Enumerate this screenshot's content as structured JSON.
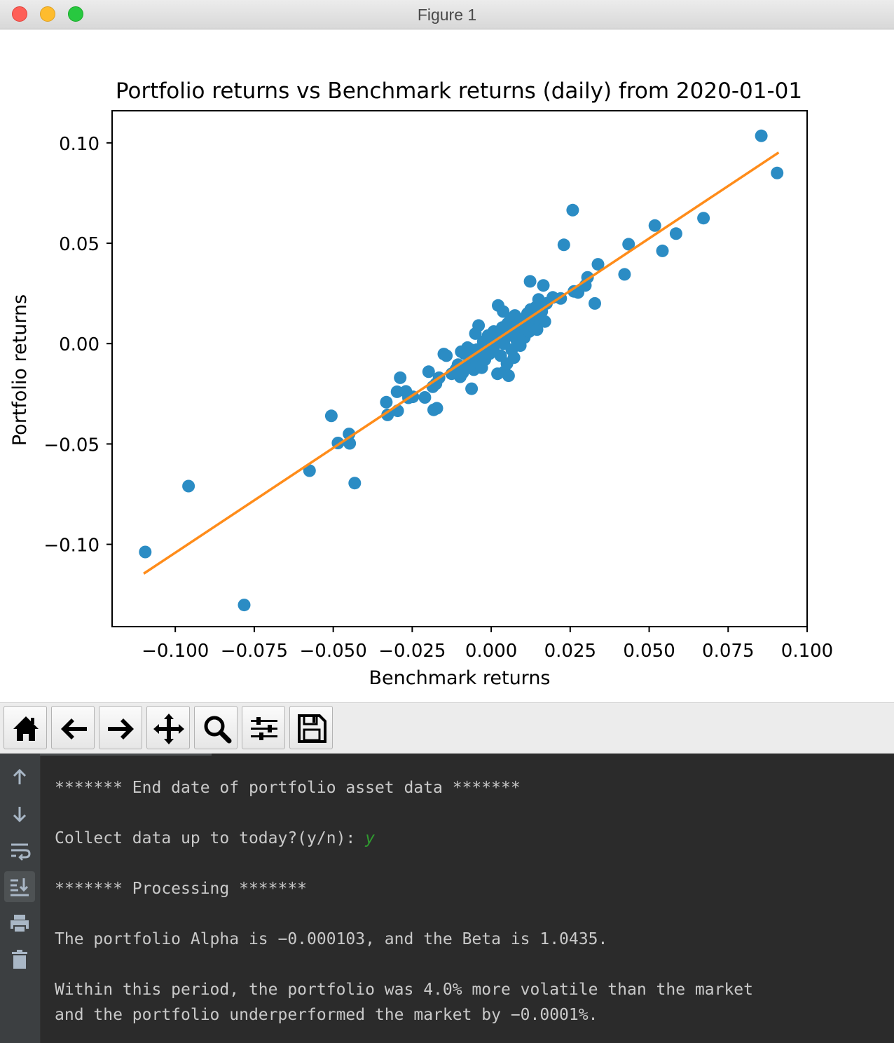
{
  "window": {
    "title": "Figure 1"
  },
  "chart_data": {
    "type": "scatter",
    "title": "Portfolio returns vs Benchmark returns (daily) from 2020-01-01",
    "xlabel": "Benchmark returns",
    "ylabel": "Portfolio returns",
    "xlim": [
      -0.12,
      0.1
    ],
    "ylim": [
      -0.141,
      0.116
    ],
    "xticks": [
      -0.1,
      -0.075,
      -0.05,
      -0.025,
      0.0,
      0.025,
      0.05,
      0.075,
      0.1
    ],
    "xtick_labels": [
      "−0.100",
      "−0.075",
      "−0.050",
      "−0.025",
      "0.000",
      "0.025",
      "0.050",
      "0.075",
      "0.100"
    ],
    "yticks": [
      0.1,
      0.05,
      0.0,
      -0.05,
      -0.1
    ],
    "ytick_labels": [
      "0.10",
      "0.05",
      "0.00",
      "−0.05",
      "−0.10"
    ],
    "grid": false,
    "colors": {
      "points": "#2b8cc4",
      "fit_line": "#ff8c1a"
    },
    "series": [
      {
        "kind": "scatter",
        "points": [
          [
            -0.1095,
            -0.1038
          ],
          [
            -0.0958,
            -0.071
          ],
          [
            -0.0782,
            -0.1302
          ],
          [
            -0.0575,
            -0.0633
          ],
          [
            -0.0506,
            -0.036
          ],
          [
            -0.0485,
            -0.0495
          ],
          [
            -0.045,
            -0.045
          ],
          [
            -0.0448,
            -0.0497
          ],
          [
            -0.0432,
            -0.0695
          ],
          [
            -0.0332,
            -0.0292
          ],
          [
            -0.0328,
            -0.0355
          ],
          [
            -0.0298,
            -0.024
          ],
          [
            -0.0296,
            -0.0335
          ],
          [
            -0.0288,
            -0.017
          ],
          [
            -0.027,
            -0.0238
          ],
          [
            -0.0262,
            -0.027
          ],
          [
            -0.0248,
            -0.0265
          ],
          [
            -0.021,
            -0.0268
          ],
          [
            -0.0198,
            -0.014
          ],
          [
            -0.0185,
            -0.0215
          ],
          [
            -0.0182,
            -0.033
          ],
          [
            -0.0175,
            -0.02
          ],
          [
            -0.0172,
            -0.0322
          ],
          [
            -0.0165,
            -0.017
          ],
          [
            -0.015,
            -0.0052
          ],
          [
            -0.0142,
            -0.006
          ],
          [
            -0.0125,
            -0.015
          ],
          [
            -0.0112,
            -0.013
          ],
          [
            -0.0105,
            -0.0105
          ],
          [
            -0.0098,
            -0.0165
          ],
          [
            -0.0095,
            -0.004
          ],
          [
            -0.009,
            -0.0145
          ],
          [
            -0.0085,
            -0.005
          ],
          [
            -0.0078,
            -0.012
          ],
          [
            -0.0075,
            -0.002
          ],
          [
            -0.007,
            -0.01
          ],
          [
            -0.0065,
            -0.003
          ],
          [
            -0.0062,
            -0.0225
          ],
          [
            -0.0058,
            -0.007
          ],
          [
            -0.0055,
            -0.013
          ],
          [
            -0.005,
            0.005
          ],
          [
            -0.0047,
            -0.009
          ],
          [
            -0.0045,
            -0.003
          ],
          [
            -0.004,
            0.009
          ],
          [
            -0.0035,
            -0.006
          ],
          [
            -0.003,
            -0.012
          ],
          [
            -0.0025,
            0.001
          ],
          [
            -0.002,
            -0.008
          ],
          [
            -0.0015,
            -0.003
          ],
          [
            -0.001,
            0.004
          ],
          [
            -0.0005,
            -0.005
          ],
          [
            0.0,
            0.002
          ],
          [
            0.0005,
            -0.002
          ],
          [
            0.0008,
            0.006
          ],
          [
            0.001,
            -0.001
          ],
          [
            0.0015,
            0.005
          ],
          [
            0.002,
            -0.015
          ],
          [
            0.0022,
            0.019
          ],
          [
            0.0025,
            0.003
          ],
          [
            0.003,
            -0.006
          ],
          [
            0.0035,
            0.008
          ],
          [
            0.0038,
            0.016
          ],
          [
            0.004,
            0.0
          ],
          [
            0.0042,
            -0.014
          ],
          [
            0.0045,
            0.003
          ],
          [
            0.005,
            -0.01
          ],
          [
            0.0052,
            0.01
          ],
          [
            0.0055,
            -0.016
          ],
          [
            0.006,
            0.005
          ],
          [
            0.0062,
            0.012
          ],
          [
            0.0065,
            -0.003
          ],
          [
            0.007,
            0.008
          ],
          [
            0.0072,
            -0.007
          ],
          [
            0.0075,
            0.014
          ],
          [
            0.008,
            0.002
          ],
          [
            0.0085,
            0.01
          ],
          [
            0.009,
            0.006
          ],
          [
            0.0092,
            -0.001
          ],
          [
            0.0095,
            0.012
          ],
          [
            0.01,
            0.008
          ],
          [
            0.0105,
            0.003
          ],
          [
            0.011,
            0.011
          ],
          [
            0.0115,
            0.015
          ],
          [
            0.012,
            0.006
          ],
          [
            0.0123,
            0.031
          ],
          [
            0.0125,
            0.017
          ],
          [
            0.013,
            0.009
          ],
          [
            0.0135,
            0.013
          ],
          [
            0.014,
            0.018
          ],
          [
            0.0145,
            0.007
          ],
          [
            0.015,
            0.022
          ],
          [
            0.0155,
            0.012
          ],
          [
            0.016,
            0.016
          ],
          [
            0.0165,
            0.029
          ],
          [
            0.017,
            0.011
          ],
          [
            0.0175,
            0.02
          ],
          [
            0.0195,
            0.023
          ],
          [
            0.022,
            0.0225
          ],
          [
            0.023,
            0.0492
          ],
          [
            0.0258,
            0.0665
          ],
          [
            0.0262,
            0.026
          ],
          [
            0.0275,
            0.0255
          ],
          [
            0.0298,
            0.029
          ],
          [
            0.0305,
            0.033
          ],
          [
            0.0328,
            0.02
          ],
          [
            0.0338,
            0.0395
          ],
          [
            0.0422,
            0.0345
          ],
          [
            0.0435,
            0.0495
          ],
          [
            0.0518,
            0.0588
          ],
          [
            0.0542,
            0.0462
          ],
          [
            0.0585,
            0.0548
          ],
          [
            0.0672,
            0.0625
          ],
          [
            0.0855,
            0.1035
          ],
          [
            0.0905,
            0.085
          ]
        ]
      },
      {
        "kind": "line",
        "from": [
          -0.11,
          -0.1146
        ],
        "to": [
          0.091,
          0.0952
        ]
      }
    ]
  },
  "toolbar": {
    "buttons": [
      {
        "icon": "home-icon"
      },
      {
        "icon": "back-arrow-icon"
      },
      {
        "icon": "forward-arrow-icon"
      },
      {
        "icon": "pan-icon"
      },
      {
        "icon": "zoom-icon"
      },
      {
        "icon": "configure-subplots-icon"
      },
      {
        "icon": "save-icon"
      }
    ]
  },
  "console": {
    "gutter_icons": [
      "scroll-up-icon",
      "scroll-down-icon",
      "soft-wrap-icon",
      "scroll-to-end-icon",
      "print-icon",
      "clear-icon"
    ],
    "lines": {
      "end_date": "******* End date of portfolio asset data *******",
      "collect_prompt": "Collect data up to today?(y/n): ",
      "collect_answer": "y",
      "processing": "******* Processing *******",
      "alpha_beta": "The portfolio Alpha is −0.000103, and the Beta is 1.0435.",
      "volatility": "Within this period, the portfolio was 4.0% more volatile than the market",
      "underperform": "and the portfolio underperformed the market by −0.0001%."
    }
  }
}
